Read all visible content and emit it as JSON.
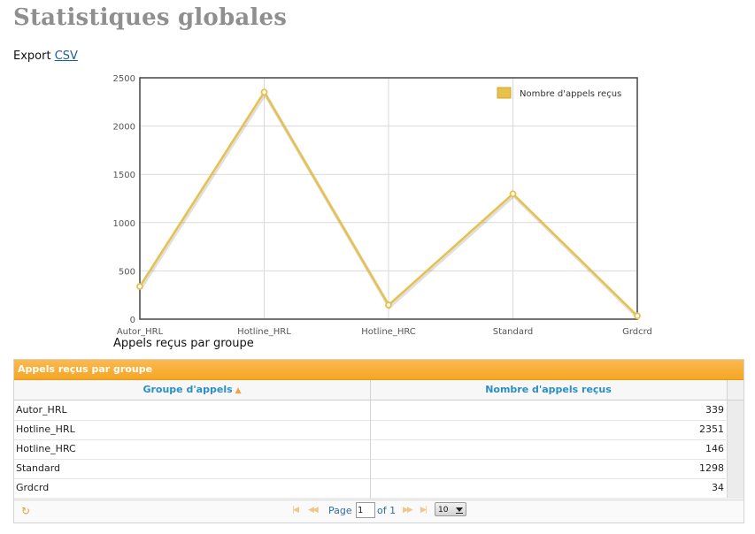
{
  "page": {
    "title": "Statistiques globales",
    "export_label": "Export",
    "export_link": "CSV"
  },
  "chart_data": {
    "type": "line",
    "categories": [
      "Autor_HRL",
      "Hotline_HRL",
      "Hotline_HRC",
      "Standard",
      "Grdcrd"
    ],
    "series": [
      {
        "name": "Nombre d'appels reçus",
        "values": [
          339,
          2351,
          146,
          1298,
          34
        ],
        "color": "#e8c14b"
      }
    ],
    "ylim": [
      0,
      2500
    ],
    "yticks": [
      0,
      500,
      1000,
      1500,
      2000,
      2500
    ],
    "grid": true,
    "legend_position": "top-right",
    "title": "",
    "xlabel": "",
    "ylabel": "",
    "caption": "Appels reçus par groupe"
  },
  "grid": {
    "title": "Appels reçus par groupe",
    "columns": {
      "group": "Groupe d'appels",
      "count": "Nombre d'appels reçus"
    },
    "rows": [
      {
        "group": "Autor_HRL",
        "count": "339"
      },
      {
        "group": "Hotline_HRL",
        "count": "2351"
      },
      {
        "group": "Hotline_HRC",
        "count": "146"
      },
      {
        "group": "Standard",
        "count": "1298"
      },
      {
        "group": "Grdcrd",
        "count": "34"
      }
    ],
    "pager": {
      "page_label": "Page",
      "page_value": "1",
      "of_label": "of 1",
      "page_size": "10"
    }
  },
  "colors": {
    "accent": "#f5a623",
    "header_text": "#2b8fc4",
    "line": "#e8c14b"
  }
}
